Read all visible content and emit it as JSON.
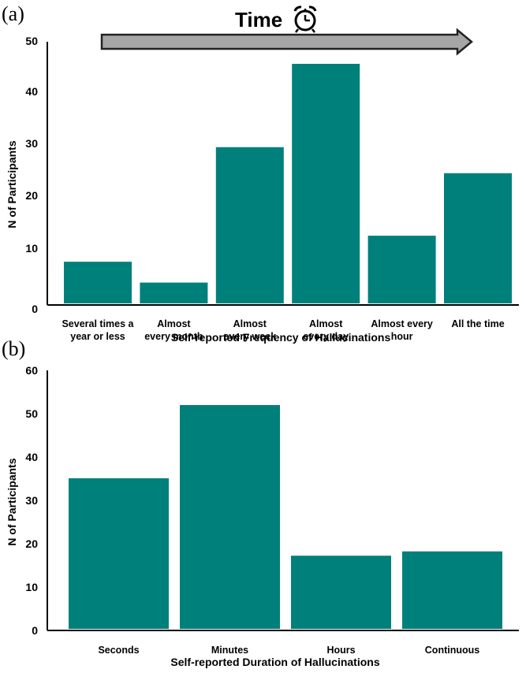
{
  "panel_a_label": "(a)",
  "panel_b_label": "(b)",
  "time_label": "Time",
  "icons": {
    "clock": "alarm-clock-icon",
    "arrow": "time-arrow"
  },
  "colors": {
    "bar": "#00807B",
    "arrow_fill": "#A6A6A6",
    "axis": "#000000"
  },
  "chart_data": [
    {
      "type": "bar",
      "title": "",
      "categories": [
        [
          "Several times a",
          "year or less"
        ],
        [
          "Almost",
          "every month"
        ],
        [
          "Almost",
          "every week"
        ],
        [
          "Almost",
          "every day"
        ],
        [
          "Almost every",
          "hour"
        ],
        [
          "All the time"
        ]
      ],
      "values": [
        8,
        4,
        30,
        46,
        13,
        25
      ],
      "xlabel": "Self-reported Frequency of Hallucinations",
      "ylabel": "N of Participants",
      "ylim": [
        0,
        50
      ],
      "yticks": [
        "0",
        "10",
        "20",
        "30",
        "40",
        "50"
      ],
      "grid": false
    },
    {
      "type": "bar",
      "title": "",
      "categories": [
        [
          "Seconds"
        ],
        [
          "Minutes"
        ],
        [
          "Hours"
        ],
        [
          "Continuous"
        ]
      ],
      "values": [
        35,
        52,
        17,
        18
      ],
      "xlabel": "Self-reported Duration of Hallucinations",
      "ylabel": "N of Participants",
      "ylim": [
        0,
        60
      ],
      "yticks": [
        "0",
        "10",
        "20",
        "30",
        "40",
        "50",
        "60"
      ],
      "grid": false
    }
  ]
}
